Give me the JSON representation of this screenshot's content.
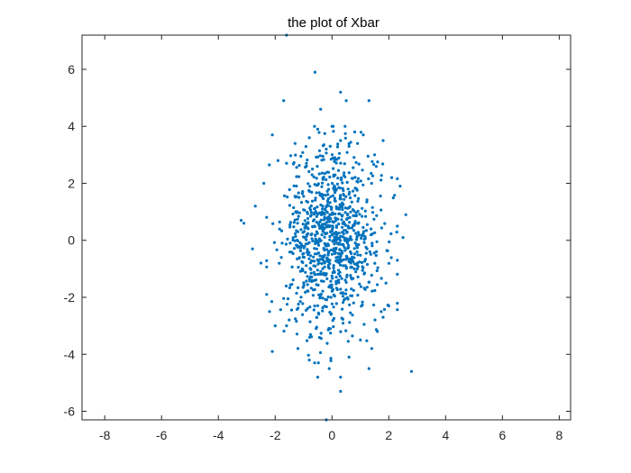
{
  "chart_data": {
    "type": "scatter",
    "title": "the plot of Xbar",
    "xlabel": "",
    "ylabel": "",
    "xlim": [
      -8.8,
      8.4
    ],
    "ylim": [
      -6.3,
      7.2
    ],
    "xticks": [
      -8,
      -6,
      -4,
      -2,
      0,
      2,
      4,
      6,
      8
    ],
    "yticks": [
      -6,
      -4,
      -2,
      0,
      2,
      4,
      6
    ],
    "xtick_labels": [
      "-8",
      "-6",
      "-4",
      "-2",
      "0",
      "2",
      "4",
      "6",
      "8"
    ],
    "ytick_labels": [
      "-6",
      "-4",
      "-2",
      "0",
      "2",
      "4",
      "6"
    ],
    "grid": false,
    "marker_color": "#0072BD",
    "series": [
      {
        "points": [
          [
            -1.6,
            7.2
          ],
          [
            -0.6,
            5.9
          ],
          [
            0.3,
            5.2
          ],
          [
            -1.7,
            4.9
          ],
          [
            1.3,
            4.9
          ],
          [
            0.5,
            4.9
          ],
          [
            -0.4,
            4.6
          ],
          [
            0.0,
            4.0
          ],
          [
            -0.5,
            3.9
          ],
          [
            0.8,
            3.8
          ],
          [
            1.1,
            3.7
          ],
          [
            -2.1,
            3.7
          ],
          [
            -0.8,
            3.6
          ],
          [
            1.8,
            3.5
          ],
          [
            0.3,
            3.5
          ],
          [
            -1.3,
            3.4
          ],
          [
            0.6,
            3.3
          ],
          [
            -0.2,
            3.2
          ],
          [
            1.5,
            3.0
          ],
          [
            -1.9,
            2.8
          ],
          [
            0.1,
            2.9
          ],
          [
            -0.9,
            2.7
          ],
          [
            2.1,
            2.2
          ],
          [
            -2.4,
            2.0
          ],
          [
            2.4,
            1.9
          ],
          [
            -2.7,
            1.2
          ],
          [
            2.6,
            0.9
          ],
          [
            -3.1,
            0.6
          ],
          [
            2.5,
            0.1
          ],
          [
            -2.8,
            -0.3
          ],
          [
            2.3,
            -0.7
          ],
          [
            -2.5,
            -0.8
          ],
          [
            1.9,
            -1.5
          ],
          [
            -2.3,
            -1.9
          ],
          [
            2.0,
            -2.3
          ],
          [
            -2.2,
            -2.5
          ],
          [
            1.8,
            -2.7
          ],
          [
            -1.6,
            -3.0
          ],
          [
            1.6,
            -3.2
          ],
          [
            -2.1,
            -3.9
          ],
          [
            1.4,
            -3.8
          ],
          [
            -0.8,
            -4.2
          ],
          [
            0.6,
            -4.1
          ],
          [
            -0.5,
            -4.8
          ],
          [
            0.3,
            -4.8
          ],
          [
            1.3,
            -4.5
          ],
          [
            -0.1,
            -4.5
          ],
          [
            0.3,
            -5.3
          ],
          [
            -0.2,
            -6.3
          ],
          [
            2.8,
            -4.6
          ],
          [
            -3.2,
            0.7
          ],
          [
            -2.0,
            -3.0
          ],
          [
            1.0,
            -3.5
          ],
          [
            -1.2,
            -3.8
          ],
          [
            0.9,
            3.4
          ]
        ],
        "core": {
          "count": 960,
          "seed": 7,
          "x_sd": 0.85,
          "y_sd": 1.6
        }
      }
    ]
  }
}
